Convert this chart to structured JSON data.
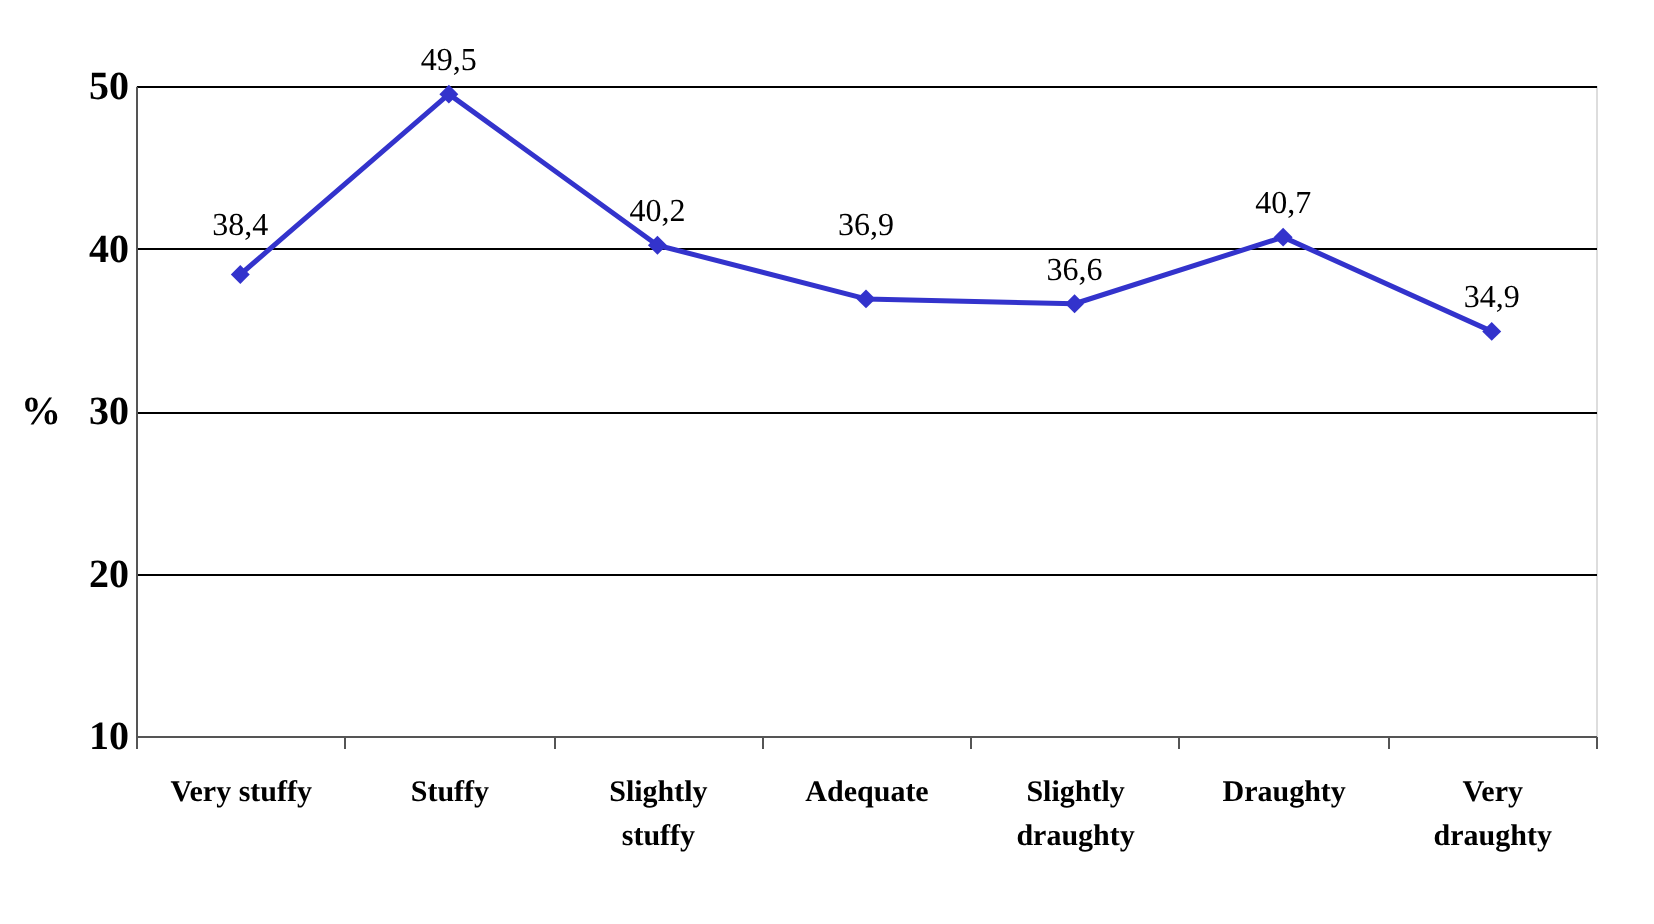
{
  "chart_data": {
    "type": "line",
    "categories": [
      "Very stuffy",
      "Stuffy",
      "Slightly stuffy",
      "Adequate",
      "Slightly draughty",
      "Draughty",
      "Very draughty"
    ],
    "series": [
      {
        "color": "#3333cc",
        "values": [
          38.4,
          49.5,
          40.2,
          36.9,
          36.6,
          40.7,
          34.9
        ],
        "value_labels": [
          "38,4",
          "49,5",
          "40,2",
          "36,9",
          "36,6",
          "40,7",
          "34,9"
        ]
      }
    ],
    "ylabel": "%",
    "ylim": [
      10,
      50
    ],
    "yticks": [
      10,
      20,
      30,
      40,
      50
    ],
    "grid": "y",
    "marker": "diamond",
    "line_style": "solid",
    "legend": false
  }
}
